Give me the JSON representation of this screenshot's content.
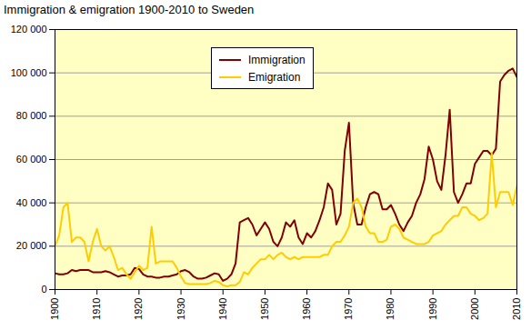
{
  "chart_data": {
    "type": "line",
    "title": "Immigration & emigration 1900-2010 to Sweden",
    "legend": "top",
    "grid": true,
    "xlim": [
      1900,
      2010
    ],
    "xticks": [
      1900,
      1910,
      1920,
      1930,
      1940,
      1950,
      1960,
      1970,
      1980,
      1990,
      2000,
      2010
    ],
    "ylim": [
      0,
      120000
    ],
    "yticks": [
      0,
      {
        "value": 20000,
        "label": "20 000"
      },
      {
        "value": 40000,
        "label": "40 000"
      },
      {
        "value": 60000,
        "label": "60 000"
      },
      {
        "value": 80000,
        "label": "80 000"
      },
      {
        "value": 100000,
        "label": "100 000"
      },
      {
        "value": 120000,
        "label": "120 000"
      }
    ],
    "x": [
      1900,
      1901,
      1902,
      1903,
      1904,
      1905,
      1906,
      1907,
      1908,
      1909,
      1910,
      1911,
      1912,
      1913,
      1914,
      1915,
      1916,
      1917,
      1918,
      1919,
      1920,
      1921,
      1922,
      1923,
      1924,
      1925,
      1926,
      1927,
      1928,
      1929,
      1930,
      1931,
      1932,
      1933,
      1934,
      1935,
      1936,
      1937,
      1938,
      1939,
      1940,
      1941,
      1942,
      1943,
      1944,
      1945,
      1946,
      1947,
      1948,
      1949,
      1950,
      1951,
      1952,
      1953,
      1954,
      1955,
      1956,
      1957,
      1958,
      1959,
      1960,
      1961,
      1962,
      1963,
      1964,
      1965,
      1966,
      1967,
      1968,
      1969,
      1970,
      1971,
      1972,
      1973,
      1974,
      1975,
      1976,
      1977,
      1978,
      1979,
      1980,
      1981,
      1982,
      1983,
      1984,
      1985,
      1986,
      1987,
      1988,
      1989,
      1990,
      1991,
      1992,
      1993,
      1994,
      1995,
      1996,
      1997,
      1998,
      1999,
      2000,
      2001,
      2002,
      2003,
      2004,
      2005,
      2006,
      2007,
      2008,
      2009,
      2010
    ],
    "series": [
      {
        "name": "Immigration",
        "color": "#800000",
        "values": [
          7500,
          7000,
          7000,
          7500,
          9000,
          8500,
          9000,
          9000,
          9000,
          8000,
          8000,
          8000,
          8500,
          8000,
          7000,
          6000,
          6500,
          6500,
          7000,
          10000,
          9500,
          7000,
          6000,
          6000,
          5500,
          5500,
          6000,
          6000,
          6500,
          7000,
          8500,
          9000,
          8000,
          6000,
          5000,
          5000,
          5500,
          6500,
          7500,
          7000,
          4000,
          5000,
          7000,
          12000,
          31000,
          32000,
          33000,
          30000,
          25000,
          28000,
          31000,
          28000,
          22000,
          20000,
          24000,
          31000,
          29000,
          32000,
          24000,
          21000,
          26000,
          24000,
          27000,
          32000,
          38000,
          49000,
          46000,
          30000,
          35000,
          64000,
          77000,
          40000,
          30000,
          30000,
          38000,
          44000,
          45000,
          44000,
          37000,
          37000,
          39000,
          35000,
          30000,
          27000,
          31000,
          34000,
          40000,
          44000,
          51000,
          66000,
          60000,
          50000,
          46000,
          62000,
          83000,
          45000,
          40000,
          44000,
          49000,
          49000,
          58000,
          61000,
          64000,
          64000,
          62000,
          65000,
          96000,
          99000,
          101000,
          102000,
          98000
        ]
      },
      {
        "name": "Emigration",
        "color": "#ffcc00",
        "values": [
          20000,
          25000,
          38000,
          40000,
          22000,
          24000,
          24000,
          22000,
          13000,
          22000,
          28000,
          20000,
          18000,
          20000,
          15000,
          9000,
          10000,
          7000,
          5000,
          8000,
          11000,
          9000,
          10000,
          29000,
          12000,
          13000,
          13000,
          13000,
          13000,
          10000,
          6000,
          3000,
          2500,
          2500,
          2500,
          2500,
          2500,
          3000,
          4000,
          3500,
          2000,
          1500,
          2000,
          2000,
          3500,
          8000,
          7000,
          10000,
          12000,
          14000,
          14000,
          16000,
          14000,
          16000,
          17000,
          15000,
          14000,
          15000,
          14000,
          15000,
          15000,
          15000,
          15000,
          15000,
          16000,
          16000,
          20000,
          22000,
          22000,
          25000,
          29000,
          40000,
          42000,
          38000,
          29000,
          26000,
          26000,
          22000,
          22000,
          23000,
          29000,
          30000,
          28000,
          24000,
          23000,
          22000,
          21000,
          21000,
          21000,
          22000,
          25000,
          26000,
          27000,
          30000,
          32000,
          34000,
          34000,
          38000,
          38000,
          35000,
          34000,
          32000,
          33000,
          35000,
          63000,
          38000,
          45000,
          45000,
          45000,
          39000,
          48000
        ]
      }
    ]
  }
}
